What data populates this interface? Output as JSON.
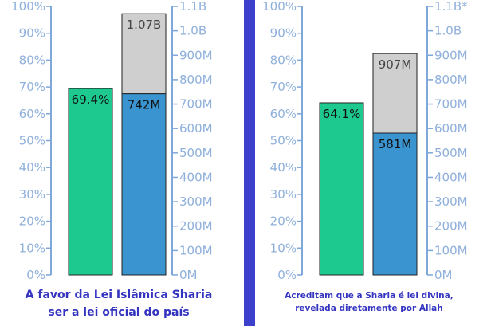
{
  "colors": {
    "axis": "#7ea7da",
    "axis_text": "#8fb0db",
    "green": "#1ec98f",
    "blue": "#3a94cf",
    "gray": "#cfcfcf",
    "divider": "#3d40cc",
    "caption": "#3434c0"
  },
  "chart_data": [
    {
      "type": "bar",
      "left_axis": {
        "ticks": [
          "0%",
          "10%",
          "20%",
          "30%",
          "40%",
          "50%",
          "60%",
          "70%",
          "80%",
          "90%",
          "100%"
        ],
        "ylim": [
          0,
          100
        ]
      },
      "right_axis": {
        "ticks": [
          "0M",
          "100M",
          "200M",
          "300M",
          "400M",
          "500M",
          "600M",
          "700M",
          "800M",
          "900M",
          "1.0B",
          "1.1B"
        ],
        "ylim": [
          0,
          1100
        ]
      },
      "percent_bar": {
        "value": 69.4,
        "label": "69.4%"
      },
      "population_bar": {
        "value": 742,
        "total": 1070,
        "value_label": "742M",
        "total_label": "1.07B"
      },
      "caption": [
        "A favor da Lei Islâmica Sharia",
        "ser a lei oficial do país"
      ]
    },
    {
      "type": "bar",
      "left_axis": {
        "ticks": [
          "0%",
          "10%",
          "20%",
          "30%",
          "40%",
          "50%",
          "60%",
          "70%",
          "80%",
          "90%",
          "100%"
        ],
        "ylim": [
          0,
          100
        ]
      },
      "right_axis": {
        "ticks": [
          "0M",
          "100M",
          "200M",
          "300M",
          "400M",
          "500M",
          "600M",
          "700M",
          "800M",
          "900M",
          "1.0B",
          "1.1B*"
        ],
        "ylim": [
          0,
          1100
        ]
      },
      "percent_bar": {
        "value": 64.1,
        "label": "64.1%"
      },
      "population_bar": {
        "value": 581,
        "total": 907,
        "value_label": "581M",
        "total_label": "907M"
      },
      "caption": [
        "Acreditam que a Sharia é lei divina,",
        "revelada diretamente por Allah"
      ]
    }
  ]
}
